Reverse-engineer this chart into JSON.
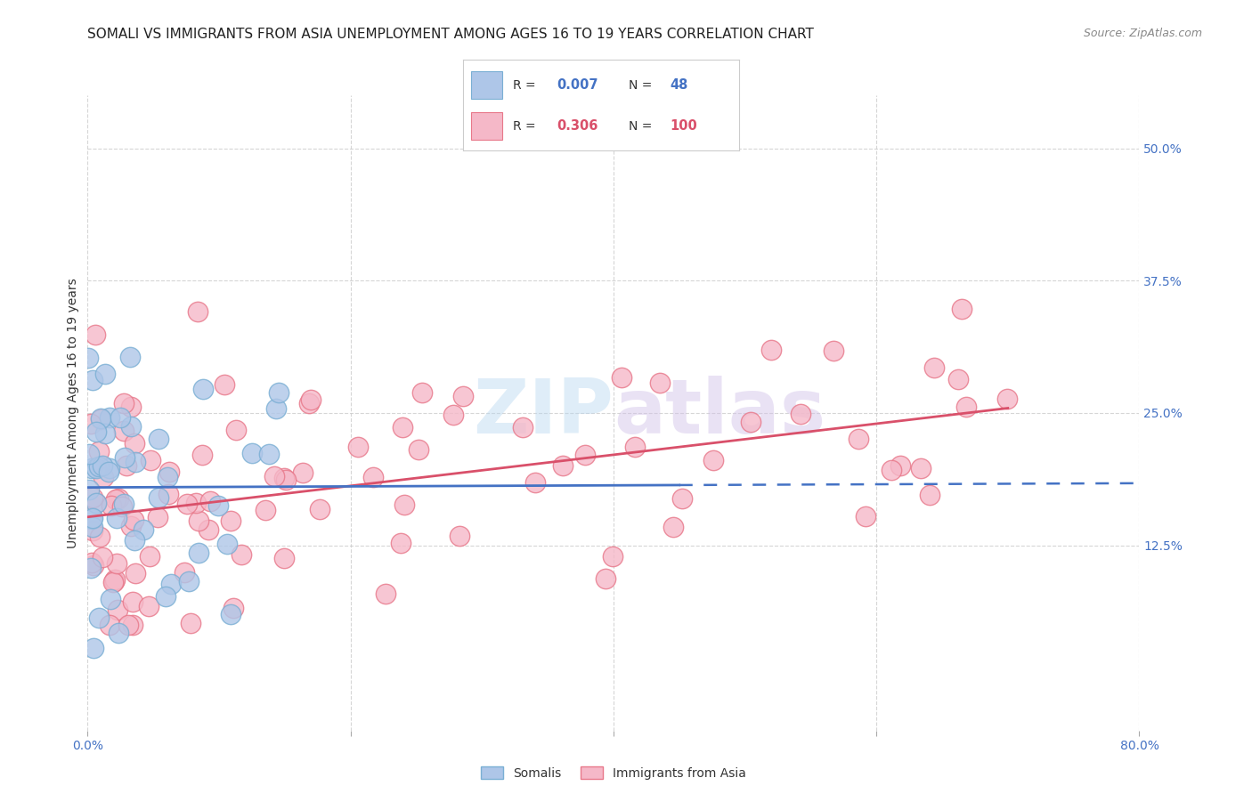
{
  "title": "SOMALI VS IMMIGRANTS FROM ASIA UNEMPLOYMENT AMONG AGES 16 TO 19 YEARS CORRELATION CHART",
  "source": "Source: ZipAtlas.com",
  "ylabel_label": "Unemployment Among Ages 16 to 19 years",
  "xlim": [
    0.0,
    0.8
  ],
  "ylim": [
    -0.05,
    0.55
  ],
  "yticks": [
    0.125,
    0.25,
    0.375,
    0.5
  ],
  "yticklabels": [
    "12.5%",
    "25.0%",
    "37.5%",
    "50.0%"
  ],
  "xticks": [
    0.0,
    0.2,
    0.4,
    0.6,
    0.8
  ],
  "xticklabels": [
    "0.0%",
    "",
    "",
    "",
    "80.0%"
  ],
  "grid_color": "#cccccc",
  "background_color": "#ffffff",
  "somali_color": "#aec6e8",
  "somali_edge_color": "#7aafd4",
  "asia_color": "#f5b8c8",
  "asia_edge_color": "#e8788a",
  "somali_line_color": "#4472c4",
  "asia_line_color": "#d9506a",
  "legend_label_somali": "Somalis",
  "legend_label_asia": "Immigrants from Asia",
  "watermark": "ZIPatlas",
  "title_fontsize": 11,
  "tick_fontsize": 10,
  "source_fontsize": 9
}
